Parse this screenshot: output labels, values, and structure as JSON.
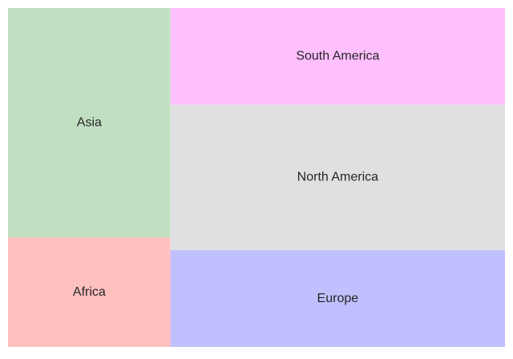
{
  "chart_data": {
    "type": "treemap",
    "title": "",
    "regions": [
      {
        "label": "Asia",
        "value": 4.6,
        "color": "#c1e0c1"
      },
      {
        "label": "Africa",
        "value": 2.2,
        "color": "#ffc0c0"
      },
      {
        "label": "South America",
        "value": 4.0,
        "color": "#ffc0ff"
      },
      {
        "label": "North America",
        "value": 6.0,
        "color": "#e0e0e0"
      },
      {
        "label": "Europe",
        "value": 4.0,
        "color": "#c0c0ff"
      }
    ]
  }
}
